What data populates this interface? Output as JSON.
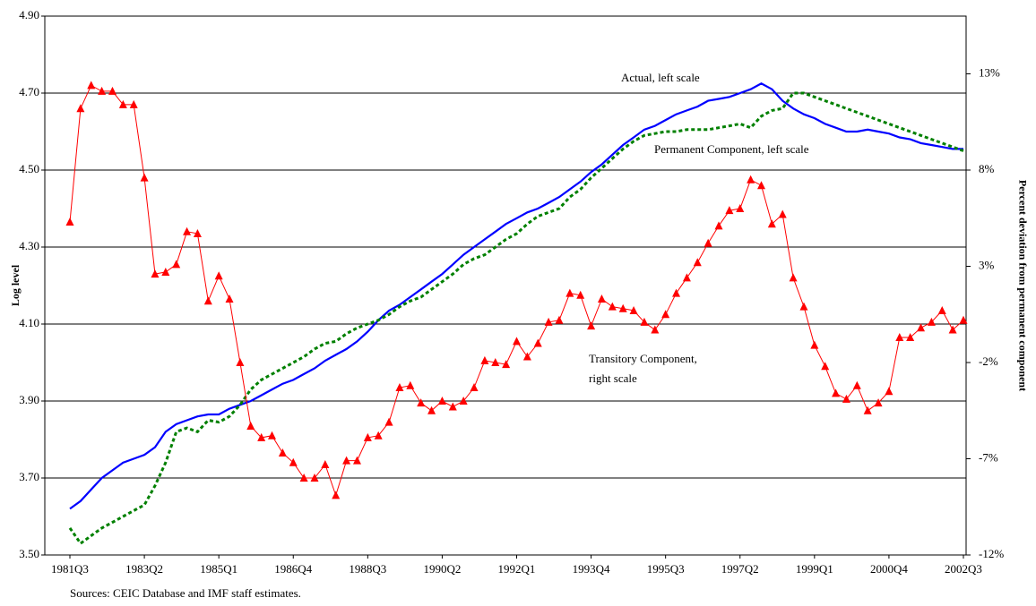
{
  "chart_data": {
    "type": "line",
    "categories": [
      "1981Q3",
      null,
      null,
      null,
      null,
      null,
      null,
      "1983Q2",
      null,
      null,
      null,
      null,
      null,
      null,
      "1985Q1",
      null,
      null,
      null,
      null,
      null,
      null,
      "1986Q4",
      null,
      null,
      null,
      null,
      null,
      null,
      "1988Q3",
      null,
      null,
      null,
      null,
      null,
      null,
      "1990Q2",
      null,
      null,
      null,
      null,
      null,
      null,
      "1992Q1",
      null,
      null,
      null,
      null,
      null,
      null,
      "1993Q4",
      null,
      null,
      null,
      null,
      null,
      null,
      "1995Q3",
      null,
      null,
      null,
      null,
      null,
      null,
      "1997Q2",
      null,
      null,
      null,
      null,
      null,
      null,
      "1999Q1",
      null,
      null,
      null,
      null,
      null,
      null,
      "2000Q4",
      null,
      null,
      null,
      null,
      null,
      null,
      "2002Q3"
    ],
    "series": [
      {
        "name": "Actual, left scale",
        "color": "#0000ff",
        "style": "solid",
        "axis": "y",
        "values": [
          3.62,
          3.64,
          3.67,
          3.7,
          3.72,
          3.74,
          3.75,
          3.76,
          3.78,
          3.82,
          3.84,
          3.85,
          3.86,
          3.865,
          3.865,
          3.88,
          3.89,
          3.9,
          3.915,
          3.93,
          3.945,
          3.955,
          3.97,
          3.985,
          4.005,
          4.02,
          4.035,
          4.055,
          4.08,
          4.11,
          4.135,
          4.15,
          4.17,
          4.19,
          4.21,
          4.23,
          4.255,
          4.28,
          4.3,
          4.32,
          4.34,
          4.36,
          4.375,
          4.39,
          4.4,
          4.415,
          4.43,
          4.45,
          4.47,
          4.495,
          4.515,
          4.54,
          4.565,
          4.585,
          4.605,
          4.615,
          4.63,
          4.645,
          4.655,
          4.665,
          4.68,
          4.685,
          4.69,
          4.7,
          4.71,
          4.725,
          4.71,
          4.68,
          4.66,
          4.645,
          4.635,
          4.62,
          4.61,
          4.6,
          4.6,
          4.605,
          4.6,
          4.595,
          4.585,
          4.58,
          4.57,
          4.565,
          4.56,
          4.555,
          4.555
        ]
      },
      {
        "name": "Permanent Component, left scale",
        "color": "#008000",
        "style": "dashed",
        "axis": "y",
        "values": [
          3.57,
          3.53,
          3.55,
          3.57,
          3.585,
          3.6,
          3.615,
          3.63,
          3.68,
          3.74,
          3.82,
          3.83,
          3.82,
          3.85,
          3.845,
          3.86,
          3.89,
          3.93,
          3.955,
          3.97,
          3.985,
          4.0,
          4.015,
          4.035,
          4.05,
          4.055,
          4.075,
          4.09,
          4.1,
          4.11,
          4.125,
          4.145,
          4.16,
          4.17,
          4.19,
          4.21,
          4.23,
          4.255,
          4.27,
          4.28,
          4.3,
          4.32,
          4.335,
          4.36,
          4.38,
          4.39,
          4.4,
          4.43,
          4.45,
          4.48,
          4.505,
          4.53,
          4.555,
          4.575,
          4.59,
          4.595,
          4.6,
          4.6,
          4.605,
          4.605,
          4.605,
          4.61,
          4.615,
          4.62,
          4.61,
          4.64,
          4.655,
          4.66,
          4.7,
          4.7,
          4.69,
          4.68,
          4.67,
          4.66,
          4.65,
          4.64,
          4.63,
          4.62,
          4.61,
          4.6,
          4.59,
          4.58,
          4.57,
          4.56,
          4.55
        ]
      },
      {
        "name": "Transitory Component, right scale",
        "color": "#ff0000",
        "style": "markers",
        "axis": "y2",
        "values": [
          5.3,
          11.2,
          12.4,
          12.1,
          12.1,
          11.4,
          11.4,
          7.6,
          2.6,
          2.7,
          3.1,
          4.8,
          4.7,
          1.2,
          2.5,
          1.3,
          -2.0,
          -5.3,
          -5.9,
          -5.8,
          -6.7,
          -7.2,
          -8.0,
          -8.0,
          -7.3,
          -8.9,
          -7.1,
          -7.1,
          -5.9,
          -5.8,
          -5.1,
          -3.3,
          -3.2,
          -4.1,
          -4.5,
          -4.0,
          -4.3,
          -4.0,
          -3.3,
          -1.9,
          -2.0,
          -2.1,
          -0.9,
          -1.7,
          -1.0,
          0.1,
          0.2,
          1.6,
          1.5,
          -0.1,
          1.3,
          0.9,
          0.8,
          0.7,
          0.1,
          -0.3,
          0.5,
          1.6,
          2.4,
          3.2,
          4.2,
          5.1,
          5.9,
          6.0,
          7.5,
          7.2,
          5.2,
          5.7,
          2.4,
          0.9,
          -1.1,
          -2.2,
          -3.6,
          -3.9,
          -3.2,
          -4.5,
          -4.1,
          -3.5,
          -0.7,
          -0.7,
          -0.2,
          0.1,
          0.7,
          -0.3,
          0.2
        ]
      }
    ],
    "y_label": "Log level",
    "y2_label": "Percent deviation from permanent component",
    "ylim": [
      3.5,
      4.9
    ],
    "yticks": [
      {
        "value": 3.5,
        "label": "3.50"
      },
      {
        "value": 3.7,
        "label": "3.70"
      },
      {
        "value": 3.9,
        "label": "3.90"
      },
      {
        "value": 4.1,
        "label": "4.10"
      },
      {
        "value": 4.3,
        "label": "4.30"
      },
      {
        "value": 4.5,
        "label": "4.50"
      },
      {
        "value": 4.7,
        "label": "4.70"
      },
      {
        "value": 4.9,
        "label": "4.90"
      }
    ],
    "y2lim": [
      -12,
      16
    ],
    "y2ticks": [
      {
        "value": -12,
        "label": "-12%"
      },
      {
        "value": -7,
        "label": "-7%"
      },
      {
        "value": -2,
        "label": "-2%"
      },
      {
        "value": 3,
        "label": "3%"
      },
      {
        "value": 8,
        "label": "8%"
      },
      {
        "value": 13,
        "label": "13%"
      }
    ],
    "grid": true,
    "source": "Sources: CEIC Database and IMF staff estimates."
  }
}
